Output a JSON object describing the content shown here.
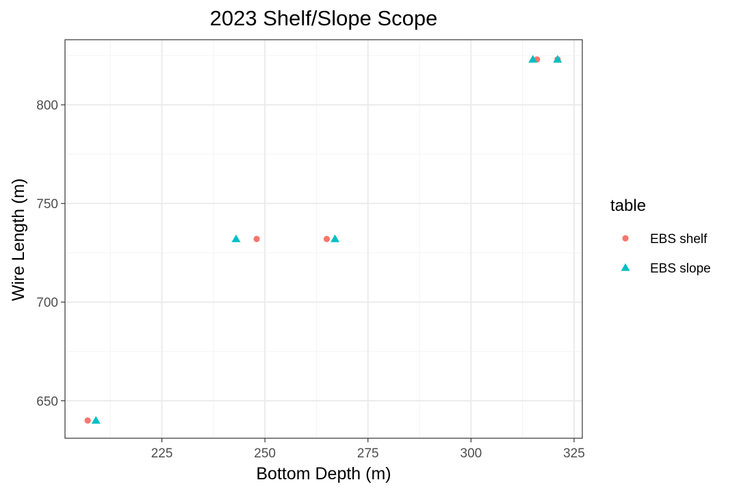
{
  "chart_data": {
    "type": "scatter",
    "title": "2023 Shelf/Slope Scope",
    "xlabel": "Bottom Depth (m)",
    "ylabel": "Wire Length (m)",
    "xlim": [
      201.5,
      327
    ],
    "ylim": [
      631,
      833
    ],
    "x_major_ticks": [
      225,
      250,
      275,
      300,
      325
    ],
    "x_minor_ticks": [
      212.5,
      237.5,
      262.5,
      287.5,
      312.5
    ],
    "y_major_ticks": [
      650,
      700,
      750,
      800
    ],
    "y_minor_ticks": [
      675,
      725,
      775,
      825
    ],
    "grid": true,
    "legend": {
      "title": "table",
      "position": "right"
    },
    "series": [
      {
        "name": "EBS shelf",
        "shape": "circle",
        "color": "#f8766d",
        "points": [
          {
            "x": 207,
            "y": 640
          },
          {
            "x": 248,
            "y": 732
          },
          {
            "x": 265,
            "y": 732
          },
          {
            "x": 316,
            "y": 823
          },
          {
            "x": 321,
            "y": 823
          }
        ]
      },
      {
        "name": "EBS slope",
        "shape": "triangle",
        "color": "#00bfc4",
        "points": [
          {
            "x": 209,
            "y": 640
          },
          {
            "x": 243,
            "y": 732
          },
          {
            "x": 267,
            "y": 732
          },
          {
            "x": 315,
            "y": 823
          },
          {
            "x": 321,
            "y": 823
          }
        ]
      }
    ]
  }
}
